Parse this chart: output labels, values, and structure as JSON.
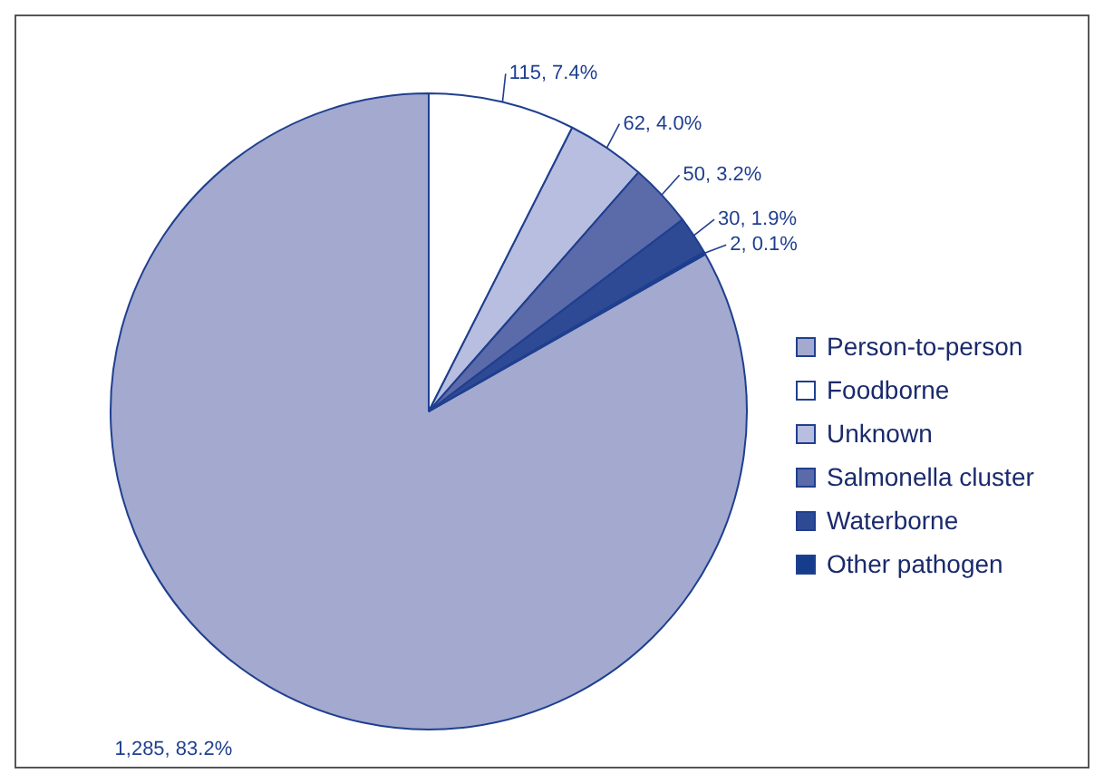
{
  "chart_data": {
    "type": "pie",
    "categories": [
      "Person-to-person",
      "Foodborne",
      "Unknown",
      "Salmonella cluster",
      "Waterborne",
      "Other pathogen"
    ],
    "values": [
      1285,
      115,
      62,
      50,
      30,
      2
    ],
    "colors": [
      "#a3a9cf",
      "#ffffff",
      "#b8bedf",
      "#5b6aa8",
      "#2f4a94",
      "#163c8c"
    ],
    "value_labels": [
      "1,285, 83.2%",
      "115, 7.4%",
      "62, 4.0%",
      "50, 3.2%",
      "30, 1.9%",
      "2, 0.1%"
    ],
    "legend": "right"
  }
}
